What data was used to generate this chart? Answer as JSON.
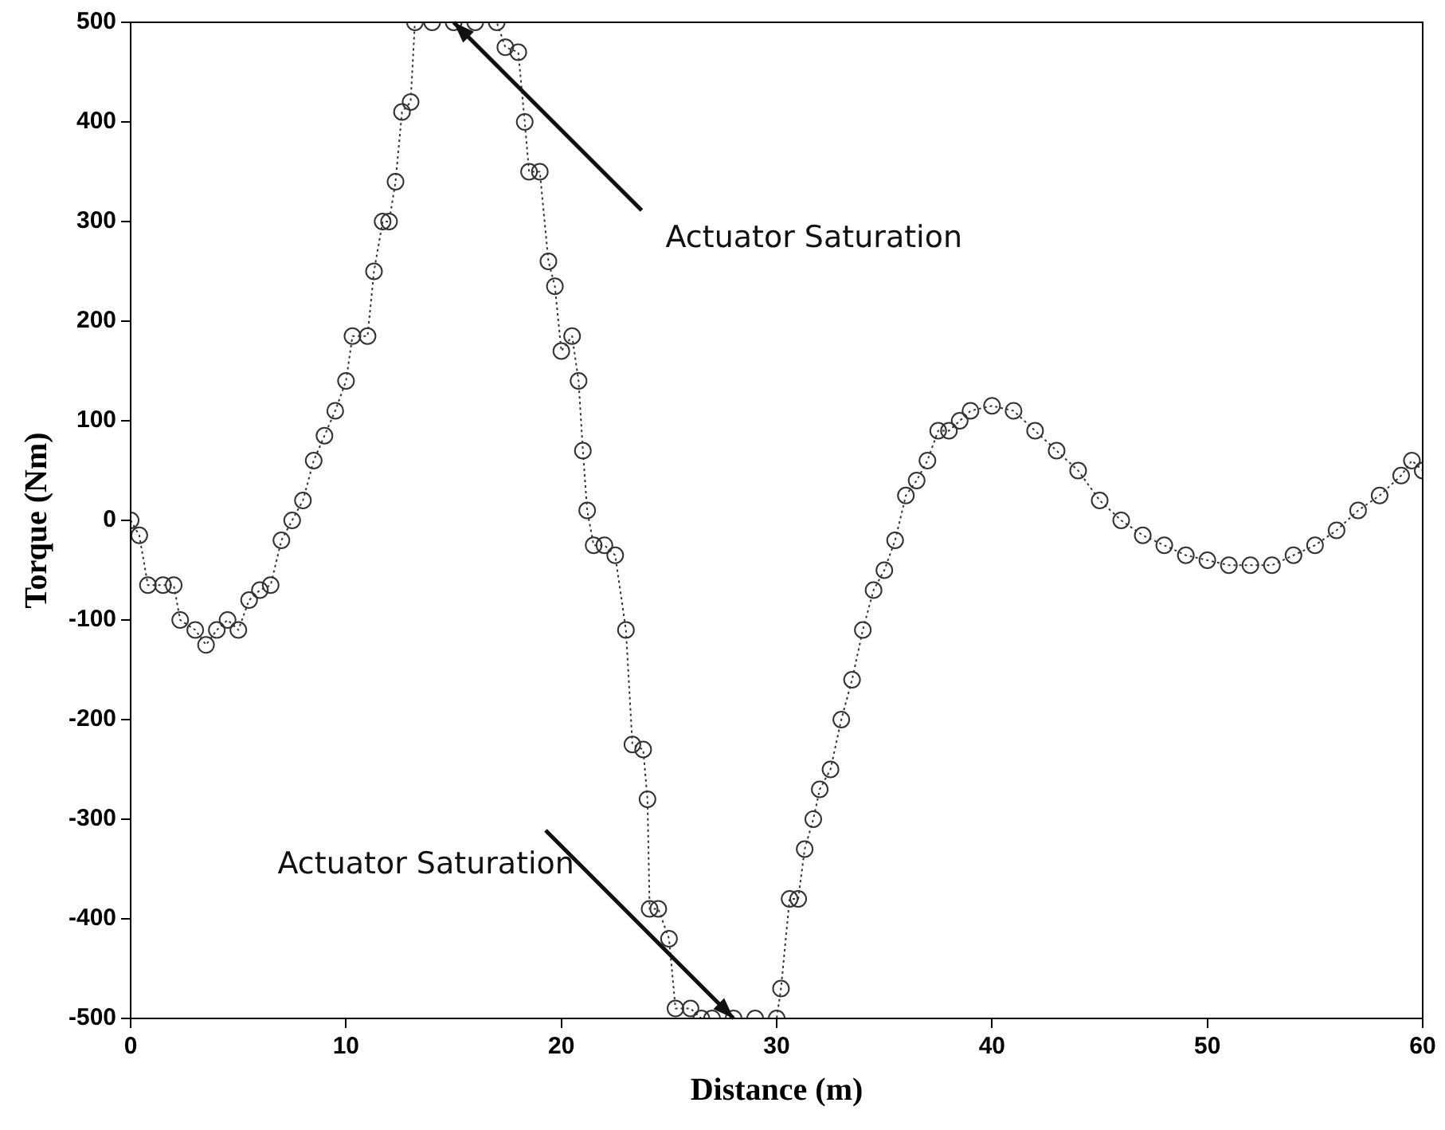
{
  "chart_data": {
    "type": "line",
    "xlabel": "Distance (m)",
    "ylabel": "Torque (Nm)",
    "xlim": [
      0,
      60
    ],
    "xticks": [
      0,
      10,
      20,
      30,
      40,
      50,
      60
    ],
    "ylim": [
      -500,
      500
    ],
    "yticks": [
      -500,
      -400,
      -300,
      -200,
      -100,
      0,
      100,
      200,
      300,
      400,
      500
    ],
    "grid": false,
    "legend": false,
    "marker": "circle",
    "line_style": "dotted",
    "annotations": [
      {
        "text": "Actuator Saturation",
        "x": 15,
        "y": 500
      },
      {
        "text": "Actuator Saturation",
        "x": 28,
        "y": -500
      }
    ],
    "series": [
      {
        "color": "#333333",
        "x": [
          0,
          0.4,
          0.8,
          1.5,
          2,
          2.3,
          3,
          3.5,
          4,
          4.5,
          5,
          5.5,
          6,
          6.5,
          7,
          7.5,
          8,
          8.5,
          9,
          9.5,
          10,
          10.3,
          11,
          11.3,
          11.7,
          12,
          12.3,
          12.6,
          13,
          13.2,
          14,
          15,
          16,
          17,
          17.4,
          18,
          18.3,
          18.5,
          19,
          19.4,
          19.7,
          20,
          20.5,
          20.8,
          21,
          21.2,
          21.5,
          22,
          22.5,
          23,
          23.3,
          23.8,
          24,
          24.1,
          24.5,
          25,
          25.3,
          26,
          26.5,
          27,
          28,
          29,
          30,
          30.2,
          30.6,
          31,
          31.3,
          31.7,
          32,
          32.5,
          33,
          33.5,
          34,
          34.5,
          35,
          35.5,
          36,
          36.5,
          37,
          37.5,
          38,
          38.5,
          39,
          40,
          41,
          42,
          43,
          44,
          45,
          46,
          47,
          48,
          49,
          50,
          51,
          52,
          53,
          54,
          55,
          56,
          57,
          58,
          59,
          59.5,
          60
        ],
        "values": [
          0,
          -15,
          -65,
          -65,
          -65,
          -100,
          -110,
          -125,
          -110,
          -100,
          -110,
          -80,
          -70,
          -65,
          -20,
          0,
          20,
          60,
          85,
          110,
          140,
          185,
          185,
          250,
          300,
          300,
          340,
          410,
          420,
          500,
          500,
          500,
          500,
          500,
          475,
          470,
          400,
          350,
          350,
          260,
          235,
          170,
          185,
          140,
          70,
          10,
          -25,
          -25,
          -35,
          -110,
          -225,
          -230,
          -280,
          -390,
          -390,
          -420,
          -490,
          -490,
          -500,
          -500,
          -500,
          -500,
          -500,
          -470,
          -380,
          -380,
          -330,
          -300,
          -270,
          -250,
          -200,
          -160,
          -110,
          -70,
          -50,
          -20,
          25,
          40,
          60,
          90,
          90,
          100,
          110,
          115,
          110,
          90,
          70,
          50,
          20,
          0,
          -15,
          -25,
          -35,
          -40,
          -45,
          -45,
          -45,
          -35,
          -25,
          -10,
          10,
          25,
          45,
          60,
          50
        ]
      }
    ]
  }
}
